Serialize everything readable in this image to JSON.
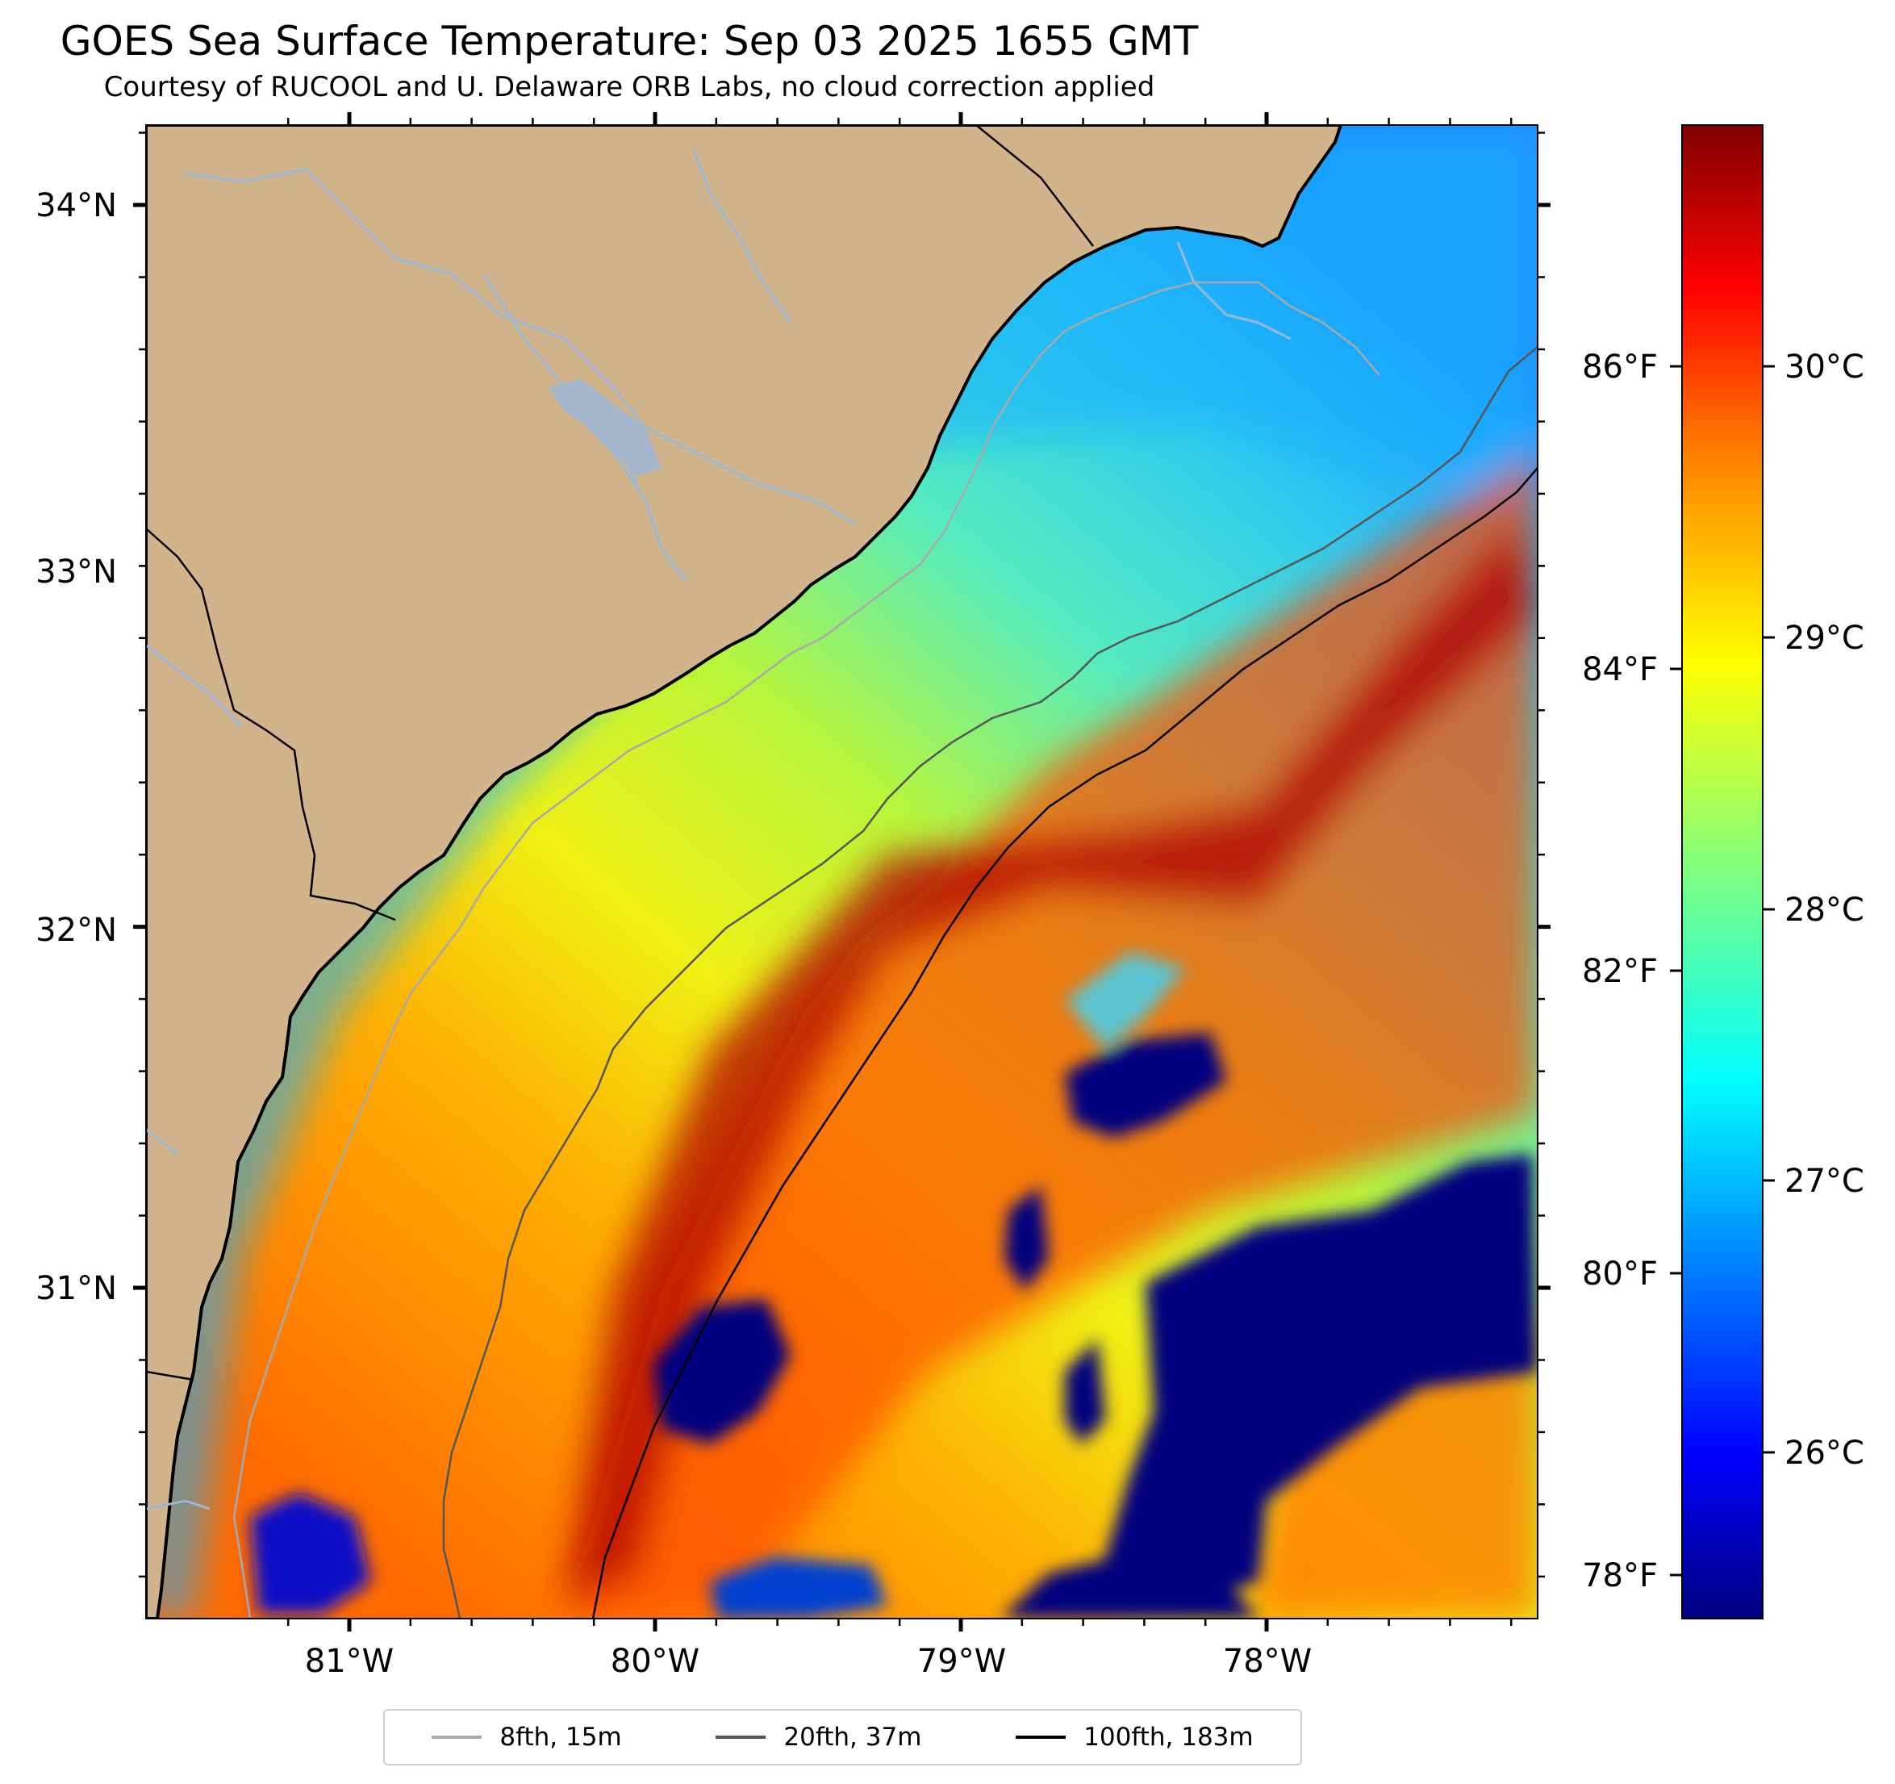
{
  "title": "GOES Sea Surface Temperature: Sep 03 2025 1655 GMT",
  "subtitle": "Courtesy of RUCOOL and U. Delaware ORB Labs, no cloud correction applied",
  "lat_ticks": [
    "34°N",
    "33°N",
    "32°N",
    "31°N"
  ],
  "lon_ticks": [
    "81°W",
    "80°W",
    "79°W",
    "78°W"
  ],
  "colorbar": {
    "fahrenheit_ticks": [
      "86°F",
      "84°F",
      "82°F",
      "80°F",
      "78°F"
    ],
    "celsius_ticks": [
      "30°C",
      "29°C",
      "28°C",
      "27°C",
      "26°C"
    ],
    "colormap": "jet",
    "colors": [
      "#00007f",
      "#0000ff",
      "#007fff",
      "#00ffff",
      "#7fff7f",
      "#ffff00",
      "#ff7f00",
      "#ff0000",
      "#7f0000"
    ]
  },
  "legend": [
    {
      "label": "8fth, 15m",
      "color": "#a9a9a9"
    },
    {
      "label": "20fth, 37m",
      "color": "#555555"
    },
    {
      "label": "100fth, 183m",
      "color": "#000000"
    }
  ],
  "map_colors": {
    "land": "#d2b48c",
    "coastline": "#000000",
    "rivers": "#9bb8d6"
  }
}
